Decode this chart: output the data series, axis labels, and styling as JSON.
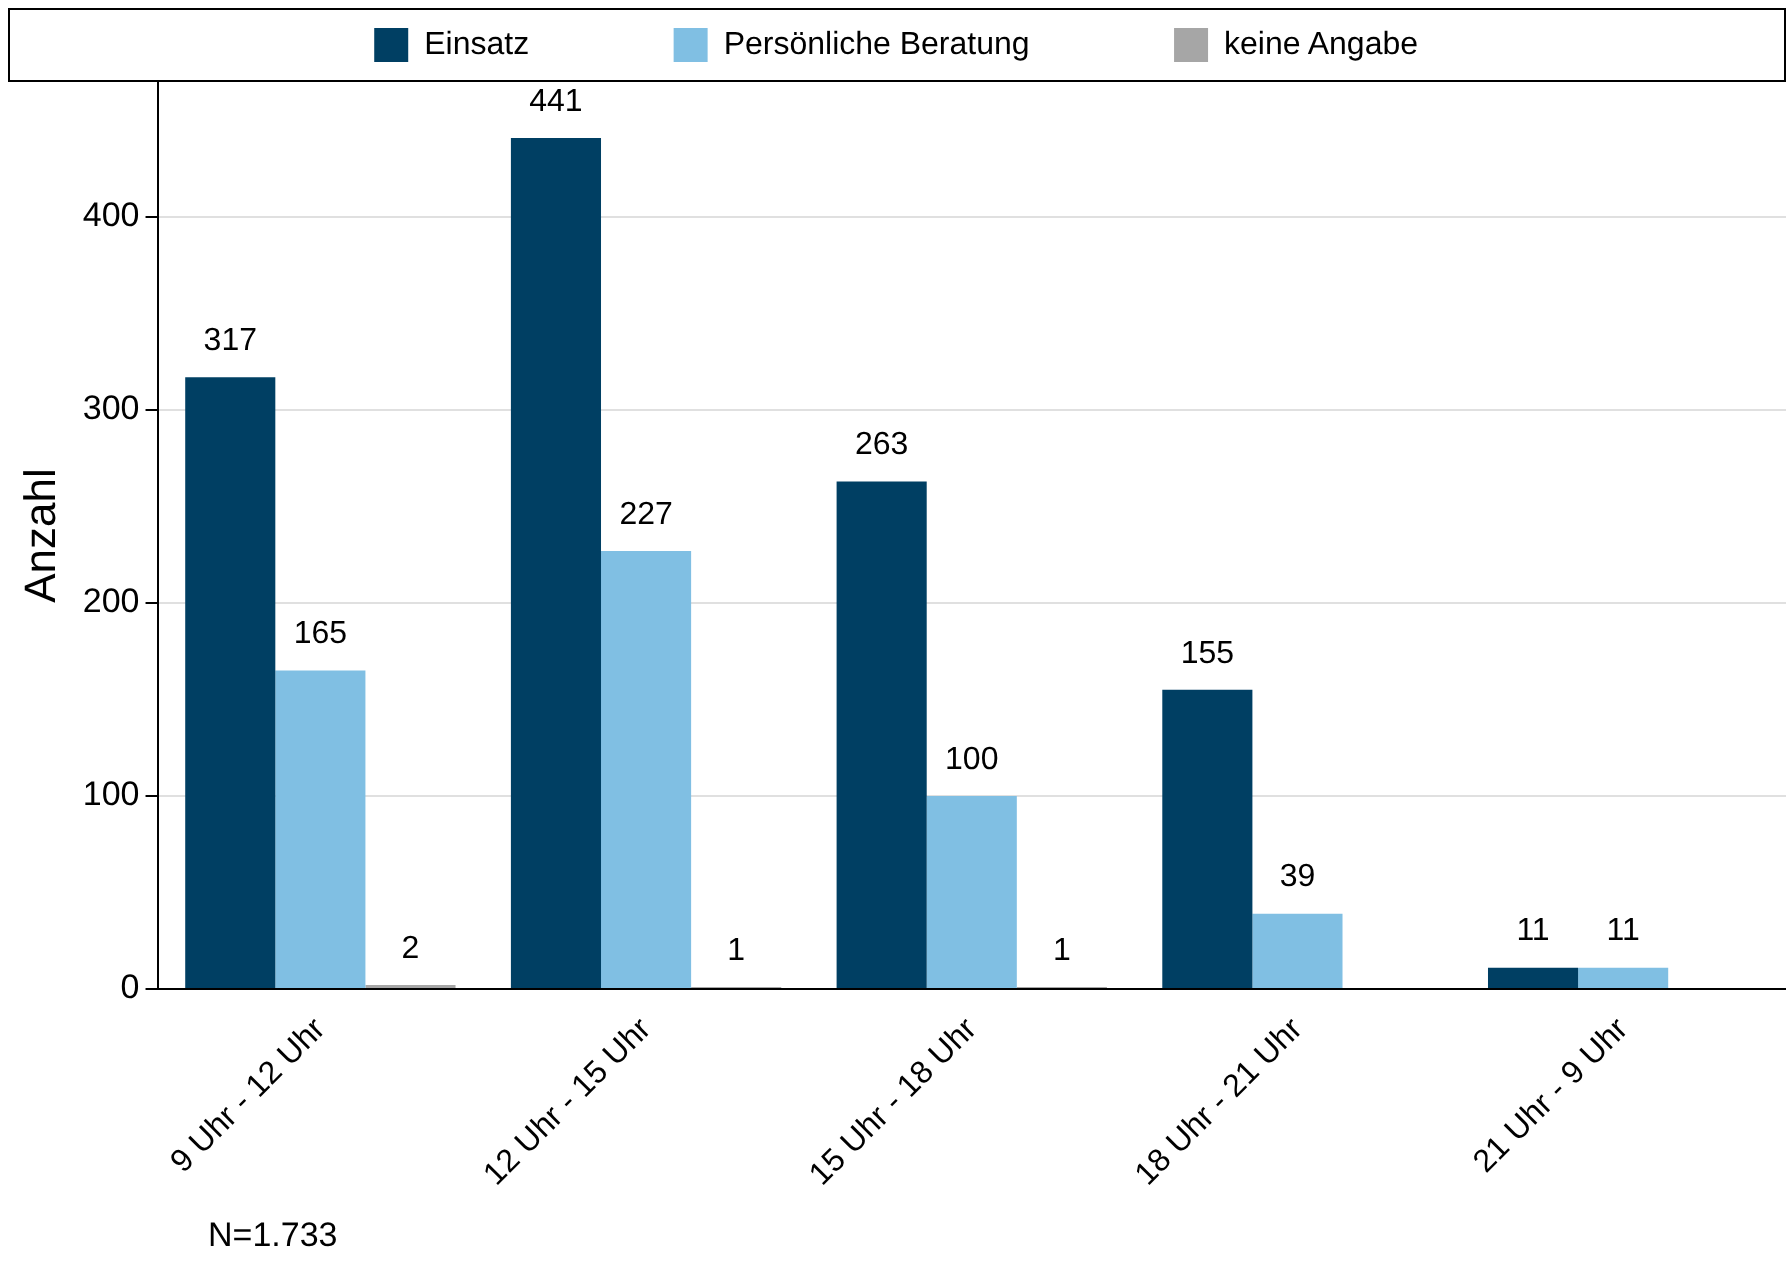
{
  "chart_data": {
    "type": "bar",
    "ylabel": "Anzahl",
    "categories": [
      "9 Uhr - 12 Uhr",
      "12 Uhr - 15 Uhr",
      "15 Uhr - 18 Uhr",
      "18 Uhr - 21 Uhr",
      "21 Uhr - 9 Uhr"
    ],
    "series": [
      {
        "name": "Einsatz",
        "color": "#003f63",
        "values": [
          317,
          441,
          263,
          155,
          11
        ]
      },
      {
        "name": "Persönliche Beratung",
        "color": "#80bfe3",
        "values": [
          165,
          227,
          100,
          39,
          11
        ]
      },
      {
        "name": "keine Angabe",
        "color": "#a6a6a6",
        "values": [
          2,
          1,
          1,
          null,
          null
        ]
      }
    ],
    "ylim": [
      0,
      470
    ],
    "yticks": [
      0,
      100,
      200,
      300,
      400
    ],
    "grid": "y",
    "legend": "top",
    "data_labels": true,
    "annotations": [
      "N=1.733"
    ]
  }
}
